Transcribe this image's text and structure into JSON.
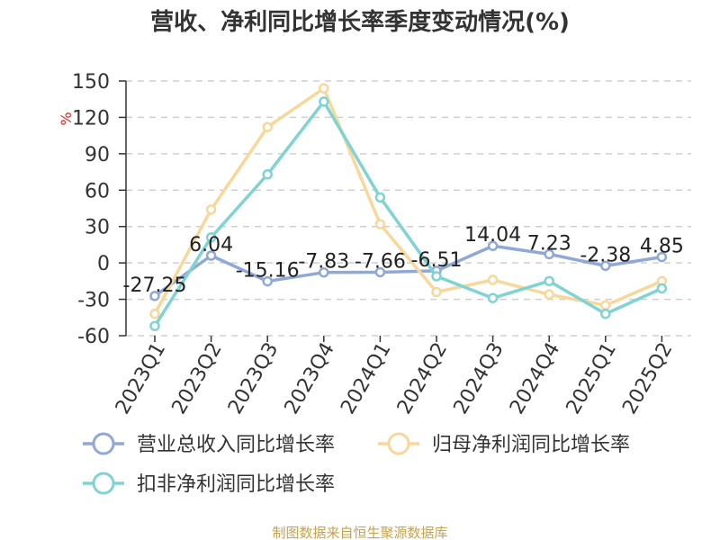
{
  "chart_data": {
    "type": "line",
    "title": "营收、净利同比增长率季度变动情况(%)",
    "ylabel": "%",
    "ylim": [
      -60,
      150
    ],
    "yticks": [
      150,
      120,
      90,
      60,
      30,
      0,
      -30,
      -60
    ],
    "grid": true,
    "legend": "bottom",
    "categories": [
      "2023Q1",
      "2023Q2",
      "2023Q3",
      "2023Q4",
      "2024Q1",
      "2024Q2",
      "2024Q3",
      "2024Q4",
      "2025Q1",
      "2025Q2"
    ],
    "series": [
      {
        "name": "营业总收入同比增长率",
        "color": "#8fa8d8",
        "values": [
          -27.25,
          6.04,
          -15.16,
          -7.83,
          -7.66,
          -6.51,
          14.04,
          7.23,
          -2.38,
          4.85
        ],
        "labels": [
          "-27.25",
          "6.04",
          "-15.16",
          "-7.83",
          "-7.66",
          "-6.51",
          "14.04",
          "7.23",
          "-2.38",
          "4.85"
        ]
      },
      {
        "name": "归母净利润同比增长率",
        "color": "#f7d89a",
        "values": [
          -42,
          44,
          112,
          144,
          32,
          -24,
          -14,
          -26,
          -35,
          -15
        ]
      },
      {
        "name": "扣非净利润同比增长率",
        "color": "#7fd3d3",
        "values": [
          -52,
          21,
          73,
          133,
          54,
          -11,
          -29,
          -15,
          -42,
          -21
        ]
      }
    ]
  },
  "source": "制图数据来自恒生聚源数据库"
}
